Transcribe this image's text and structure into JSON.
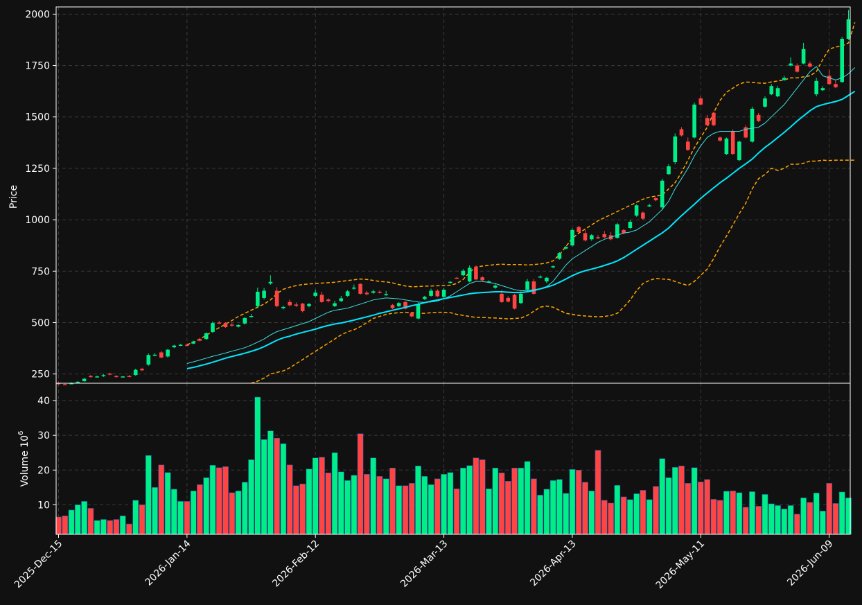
{
  "theme": {
    "background": "#111111",
    "up_color": "#00ee88",
    "down_color": "#ff4444",
    "sma_fast_color": "#40e0e0",
    "sma_slow_color": "#00e8ff",
    "band_color": "#ffa500",
    "grid_color": "#3a3a3a",
    "axis_color": "#ffffff"
  },
  "chart_data": {
    "type": "candlestick",
    "x_tick_labels": [
      "2025-Dec-15",
      "2026-Jan-14",
      "2026-Feb-12",
      "2026-Mar-13",
      "2026-Apr-13",
      "2026-May-11",
      "2026-Jun-09"
    ],
    "x_tick_index": [
      0,
      20,
      40,
      60,
      80,
      100,
      120
    ],
    "price_panel": {
      "ylabel": "Price",
      "ylim": [
        205,
        2035
      ],
      "yticks": [
        250,
        500,
        750,
        1000,
        1250,
        1500,
        1750,
        2000
      ],
      "grid": true
    },
    "volume_panel": {
      "ylabel": "Volume  10",
      "ylabel_exponent": "6",
      "ylim": [
        1.5,
        45
      ],
      "yticks": [
        10,
        20,
        30,
        40
      ],
      "grid": true
    },
    "candles": [
      [
        205,
        210,
        200,
        198
      ],
      [
        200,
        203,
        198,
        196
      ],
      [
        203,
        210,
        205,
        201
      ],
      [
        208,
        216,
        212,
        206
      ],
      [
        215,
        230,
        227,
        213
      ],
      [
        240,
        245,
        236,
        232
      ],
      [
        236,
        242,
        238,
        233
      ],
      [
        240,
        250,
        244,
        236
      ],
      [
        252,
        256,
        248,
        244
      ],
      [
        240,
        244,
        236,
        232
      ],
      [
        236,
        240,
        238,
        232
      ],
      [
        240,
        245,
        239,
        236
      ],
      [
        245,
        275,
        270,
        242
      ],
      [
        275,
        280,
        268,
        264
      ],
      [
        295,
        350,
        342,
        290
      ],
      [
        340,
        352,
        344,
        336
      ],
      [
        355,
        362,
        330,
        326
      ],
      [
        335,
        372,
        368,
        330
      ],
      [
        380,
        392,
        388,
        376
      ],
      [
        390,
        396,
        392,
        386
      ],
      [
        392,
        398,
        388,
        384
      ],
      [
        398,
        412,
        408,
        394
      ],
      [
        420,
        425,
        412,
        408
      ],
      [
        420,
        452,
        448,
        416
      ],
      [
        455,
        505,
        498,
        450
      ],
      [
        500,
        508,
        498,
        494
      ],
      [
        498,
        502,
        478,
        474
      ],
      [
        490,
        498,
        485,
        480
      ],
      [
        480,
        492,
        488,
        476
      ],
      [
        495,
        528,
        522,
        490
      ],
      [
        530,
        542,
        532,
        524
      ],
      [
        580,
        670,
        650,
        570
      ],
      [
        620,
        668,
        655,
        612
      ],
      [
        690,
        730,
        698,
        684
      ],
      [
        655,
        672,
        580,
        574
      ],
      [
        570,
        582,
        576,
        564
      ],
      [
        600,
        612,
        584,
        578
      ],
      [
        588,
        598,
        582,
        576
      ],
      [
        592,
        596,
        556,
        550
      ],
      [
        580,
        596,
        590,
        574
      ],
      [
        630,
        660,
        645,
        624
      ],
      [
        635,
        650,
        600,
        596
      ],
      [
        612,
        618,
        605,
        598
      ],
      [
        580,
        606,
        594,
        576
      ],
      [
        605,
        630,
        618,
        600
      ],
      [
        630,
        658,
        652,
        626
      ],
      [
        668,
        685,
        670,
        660
      ],
      [
        688,
        692,
        640,
        636
      ],
      [
        645,
        654,
        638,
        632
      ],
      [
        645,
        660,
        652,
        640
      ],
      [
        650,
        656,
        645,
        642
      ],
      [
        636,
        654,
        638,
        630
      ],
      [
        585,
        590,
        570,
        566
      ],
      [
        580,
        600,
        595,
        576
      ],
      [
        600,
        605,
        568,
        564
      ],
      [
        545,
        548,
        530,
        526
      ],
      [
        520,
        598,
        590,
        516
      ],
      [
        615,
        630,
        625,
        610
      ],
      [
        630,
        665,
        655,
        626
      ],
      [
        655,
        662,
        628,
        624
      ],
      [
        625,
        668,
        660,
        620
      ],
      [
        695,
        702,
        698,
        690
      ],
      [
        718,
        722,
        716,
        712
      ],
      [
        730,
        760,
        752,
        726
      ],
      [
        700,
        778,
        766,
        696
      ],
      [
        772,
        778,
        710,
        706
      ],
      [
        720,
        726,
        706,
        700
      ],
      [
        700,
        705,
        700,
        694
      ],
      [
        670,
        688,
        680,
        664
      ],
      [
        640,
        658,
        600,
        596
      ],
      [
        620,
        628,
        602,
        598
      ],
      [
        635,
        640,
        568,
        564
      ],
      [
        595,
        652,
        640,
        590
      ],
      [
        660,
        712,
        700,
        650
      ],
      [
        700,
        712,
        640,
        636
      ],
      [
        720,
        730,
        724,
        716
      ],
      [
        700,
        722,
        718,
        692
      ],
      [
        770,
        778,
        774,
        764
      ],
      [
        810,
        842,
        838,
        806
      ],
      [
        860,
        872,
        868,
        856
      ],
      [
        875,
        958,
        950,
        870
      ],
      [
        965,
        970,
        940,
        936
      ],
      [
        935,
        950,
        900,
        894
      ],
      [
        905,
        930,
        925,
        898
      ],
      [
        915,
        925,
        910,
        906
      ],
      [
        930,
        945,
        915,
        910
      ],
      [
        925,
        940,
        905,
        900
      ],
      [
        912,
        985,
        978,
        908
      ],
      [
        950,
        956,
        935,
        930
      ],
      [
        960,
        1000,
        990,
        955
      ],
      [
        1020,
        1075,
        1070,
        1015
      ],
      [
        1035,
        1040,
        1005,
        1000
      ],
      [
        1068,
        1078,
        1070,
        1062
      ],
      [
        1105,
        1112,
        1095,
        1090
      ],
      [
        1060,
        1200,
        1190,
        1050
      ],
      [
        1222,
        1270,
        1260,
        1218
      ],
      [
        1280,
        1420,
        1405,
        1270
      ],
      [
        1440,
        1450,
        1410,
        1405
      ],
      [
        1380,
        1400,
        1340,
        1335
      ],
      [
        1400,
        1570,
        1560,
        1395
      ],
      [
        1590,
        1600,
        1560,
        1555
      ],
      [
        1495,
        1510,
        1460,
        1455
      ],
      [
        1520,
        1525,
        1460,
        1455
      ],
      [
        1400,
        1405,
        1385,
        1380
      ],
      [
        1320,
        1400,
        1395,
        1315
      ],
      [
        1430,
        1440,
        1320,
        1315
      ],
      [
        1290,
        1385,
        1380,
        1286
      ],
      [
        1450,
        1460,
        1400,
        1395
      ],
      [
        1380,
        1550,
        1540,
        1375
      ],
      [
        1510,
        1520,
        1480,
        1475
      ],
      [
        1550,
        1600,
        1590,
        1545
      ],
      [
        1610,
        1660,
        1650,
        1606
      ],
      [
        1600,
        1650,
        1640,
        1596
      ],
      [
        1680,
        1700,
        1690,
        1676
      ],
      [
        1750,
        1790,
        1760,
        1746
      ],
      [
        1750,
        1760,
        1720,
        1716
      ],
      [
        1760,
        1860,
        1830,
        1756
      ],
      [
        1760,
        1770,
        1745,
        1740
      ],
      [
        1610,
        1690,
        1675,
        1600
      ],
      [
        1630,
        1650,
        1640,
        1626
      ],
      [
        1700,
        1730,
        1660,
        1655
      ],
      [
        1660,
        1680,
        1645,
        1640
      ],
      [
        1670,
        1890,
        1880,
        1666
      ],
      [
        1880,
        2020,
        1975,
        1875
      ]
    ],
    "volume": [
      6.5,
      6.8,
      8.5,
      10,
      11,
      9,
      5.5,
      5.8,
      5.5,
      5.8,
      6.8,
      4.5,
      11.3,
      10,
      24.2,
      15,
      21.5,
      19.3,
      14.5,
      11,
      11,
      14,
      15.8,
      17.8,
      21.4,
      20.7,
      21,
      13.5,
      14,
      16.5,
      23,
      41,
      28.8,
      31.3,
      29.2,
      27.6,
      21.5,
      15.5,
      16,
      20.3,
      23.5,
      23.7,
      19.2,
      25,
      19.5,
      17,
      18.5,
      30.5,
      18.8,
      23.5,
      18.2,
      17.5,
      20.6,
      15.5,
      15.5,
      16.2,
      21.2,
      18.2,
      15.8,
      17.5,
      18.8,
      19.3,
      14.6,
      20.6,
      21.3,
      23.5,
      23,
      14.6,
      20.6,
      19.2,
      16.8,
      20.6,
      20.6,
      22.5,
      17.5,
      12.8,
      14.5,
      17,
      17.3,
      13.3,
      20.2,
      20,
      16.5,
      14,
      25.7,
      11.3,
      10.5,
      15.6,
      12.3,
      11.5,
      13.2,
      14.2,
      11.5,
      15.3,
      23.3,
      17.8,
      20.8,
      21.2,
      16.2,
      20.7,
      16.6,
      17.3,
      11.6,
      11.3,
      13.9,
      14,
      13.5,
      9.3,
      13.8,
      9.6,
      13,
      10.3,
      9.8,
      8.8,
      9.8,
      7.3,
      12,
      10.7,
      13.4,
      8.2,
      16.2,
      10.4,
      13.7,
      12
    ],
    "sma_fast": [
      null,
      null,
      null,
      null,
      null,
      null,
      null,
      null,
      null,
      null,
      null,
      null,
      null,
      null,
      null,
      null,
      null,
      null,
      null,
      null,
      301,
      309,
      318,
      327,
      336,
      344,
      352,
      361,
      369,
      378,
      390,
      405,
      420,
      440,
      456,
      466,
      475,
      485,
      495,
      505,
      520,
      535,
      550,
      560,
      565,
      570,
      580,
      590,
      600,
      610,
      615,
      620,
      618,
      615,
      610,
      605,
      600,
      598,
      600,
      605,
      615,
      630,
      650,
      670,
      690,
      700,
      700,
      695,
      690,
      680,
      670,
      660,
      655,
      655,
      660,
      665,
      675,
      700,
      740,
      780,
      810,
      830,
      850,
      870,
      890,
      905,
      915,
      925,
      935,
      940,
      950,
      970,
      990,
      1020,
      1050,
      1090,
      1150,
      1200,
      1250,
      1310,
      1360,
      1400,
      1420,
      1430,
      1430,
      1430,
      1430,
      1440,
      1445,
      1450,
      1470,
      1500,
      1530,
      1560,
      1600,
      1640,
      1680,
      1720,
      1745,
      1700,
      1690,
      1680,
      1690,
      1710,
      1740
    ],
    "sma_slow": [
      null,
      null,
      null,
      null,
      null,
      null,
      null,
      null,
      null,
      null,
      null,
      null,
      null,
      null,
      null,
      null,
      null,
      null,
      null,
      null,
      276,
      282,
      290,
      298,
      307,
      317,
      327,
      335,
      343,
      351,
      360,
      370,
      383,
      398,
      414,
      426,
      434,
      444,
      452,
      460,
      468,
      478,
      486,
      493,
      498,
      505,
      512,
      520,
      528,
      536,
      545,
      552,
      560,
      567,
      574,
      582,
      589,
      597,
      604,
      610,
      616,
      622,
      628,
      634,
      640,
      644,
      646,
      648,
      650,
      650,
      648,
      646,
      646,
      650,
      656,
      664,
      672,
      682,
      696,
      712,
      728,
      742,
      752,
      760,
      768,
      778,
      788,
      800,
      816,
      836,
      856,
      876,
      896,
      916,
      936,
      960,
      990,
      1020,
      1048,
      1075,
      1104,
      1130,
      1155,
      1180,
      1202,
      1226,
      1250,
      1272,
      1295,
      1325,
      1352,
      1375,
      1400,
      1425,
      1452,
      1480,
      1505,
      1530,
      1550,
      1560,
      1568,
      1575,
      1585,
      1605,
      1625
    ],
    "band_upper": [
      null,
      null,
      null,
      null,
      null,
      null,
      null,
      null,
      null,
      null,
      null,
      null,
      null,
      null,
      null,
      null,
      null,
      null,
      null,
      null,
      392,
      405,
      420,
      438,
      458,
      475,
      492,
      510,
      530,
      545,
      560,
      575,
      590,
      610,
      640,
      662,
      672,
      680,
      685,
      688,
      690,
      692,
      694,
      696,
      700,
      704,
      708,
      712,
      710,
      705,
      700,
      698,
      693,
      685,
      678,
      674,
      675,
      677,
      678,
      679,
      680,
      682,
      690,
      710,
      745,
      770,
      775,
      778,
      782,
      784,
      782,
      782,
      782,
      780,
      782,
      785,
      790,
      800,
      830,
      870,
      910,
      935,
      955,
      975,
      995,
      1010,
      1025,
      1040,
      1055,
      1070,
      1085,
      1100,
      1110,
      1115,
      1120,
      1150,
      1180,
      1230,
      1290,
      1350,
      1400,
      1450,
      1520,
      1580,
      1620,
      1640,
      1660,
      1670,
      1668,
      1665,
      1664,
      1670,
      1675,
      1680,
      1690,
      1690,
      1695,
      1700,
      1720,
      1780,
      1830,
      1840,
      1845,
      1860,
      1960
    ],
    "band_lower": [
      null,
      null,
      null,
      null,
      null,
      null,
      null,
      null,
      null,
      null,
      null,
      null,
      null,
      null,
      null,
      null,
      null,
      null,
      null,
      null,
      null,
      null,
      null,
      null,
      null,
      null,
      null,
      null,
      null,
      null,
      205,
      215,
      230,
      250,
      258,
      265,
      280,
      300,
      320,
      340,
      360,
      380,
      400,
      420,
      440,
      455,
      465,
      480,
      500,
      520,
      530,
      540,
      545,
      548,
      550,
      548,
      545,
      545,
      548,
      550,
      550,
      548,
      540,
      535,
      530,
      525,
      525,
      523,
      522,
      520,
      518,
      520,
      522,
      535,
      555,
      575,
      580,
      575,
      560,
      545,
      540,
      535,
      532,
      530,
      528,
      530,
      535,
      545,
      575,
      610,
      655,
      690,
      705,
      715,
      712,
      710,
      700,
      690,
      680,
      700,
      730,
      760,
      810,
      870,
      920,
      975,
      1030,
      1080,
      1150,
      1200,
      1220,
      1250,
      1240,
      1250,
      1270,
      1270,
      1275,
      1285,
      1285,
      1290,
      1288,
      1290,
      1290,
      1290,
      1290
    ]
  }
}
